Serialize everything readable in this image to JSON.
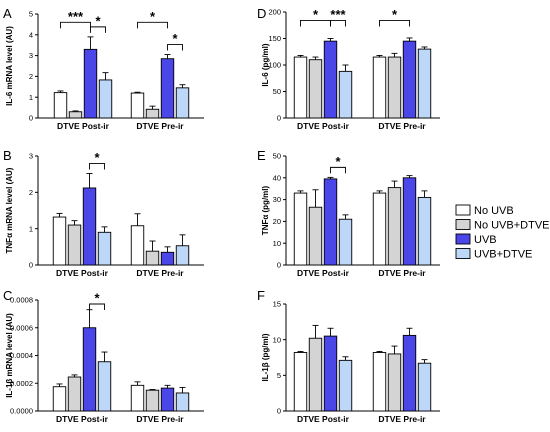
{
  "chart_data": [
    {
      "type": "bar",
      "panel": "A",
      "ylabel": "IL-6 mRNA level (AU)",
      "ylim": [
        0,
        5
      ],
      "yticks": [
        0,
        1,
        2,
        3,
        4,
        5
      ],
      "categories": [
        "DTVE Post-ir",
        "DTVE Pre-ir"
      ],
      "series": [
        {
          "name": "No UVB",
          "values": [
            1.22,
            1.2
          ],
          "errors": [
            0.08,
            0.04
          ]
        },
        {
          "name": "No UVB+DTVE",
          "values": [
            0.3,
            0.42
          ],
          "errors": [
            0.04,
            0.15
          ]
        },
        {
          "name": "UVB",
          "values": [
            3.3,
            2.85
          ],
          "errors": [
            0.6,
            0.2
          ]
        },
        {
          "name": "UVB+DTVE",
          "values": [
            1.83,
            1.45
          ],
          "errors": [
            0.35,
            0.15
          ]
        }
      ],
      "significance": [
        {
          "label": "***",
          "from": [
            0,
            0
          ],
          "to": [
            0,
            2
          ]
        },
        {
          "label": "*",
          "from": [
            0,
            2
          ],
          "to": [
            0,
            3
          ]
        },
        {
          "label": "*",
          "from": [
            1,
            0
          ],
          "to": [
            1,
            2
          ]
        },
        {
          "label": "*",
          "from": [
            1,
            2
          ],
          "to": [
            1,
            3
          ]
        }
      ]
    },
    {
      "type": "bar",
      "panel": "B",
      "ylabel": "TNFα mRNA level (AU)",
      "ylim": [
        0,
        3
      ],
      "yticks": [
        0,
        1,
        2,
        3
      ],
      "categories": [
        "DTVE Post-ir",
        "DTVE Pre-ir"
      ],
      "series": [
        {
          "name": "No UVB",
          "values": [
            1.32,
            1.08
          ],
          "errors": [
            0.1,
            0.33
          ]
        },
        {
          "name": "No UVB+DTVE",
          "values": [
            1.1,
            0.38
          ],
          "errors": [
            0.12,
            0.28
          ]
        },
        {
          "name": "UVB",
          "values": [
            2.12,
            0.35
          ],
          "errors": [
            0.4,
            0.15
          ]
        },
        {
          "name": "UVB+DTVE",
          "values": [
            0.9,
            0.53
          ],
          "errors": [
            0.15,
            0.3
          ]
        }
      ],
      "significance": [
        {
          "label": "*",
          "from": [
            0,
            2
          ],
          "to": [
            0,
            3
          ]
        }
      ]
    },
    {
      "type": "bar",
      "panel": "C",
      "ylabel": "IL-1β mRNA level (AU)",
      "ylim": [
        0,
        0.0008
      ],
      "yticks": [
        "0.0000",
        "0.0002",
        "0.0004",
        "0.0006",
        "0.0008"
      ],
      "categories": [
        "DTVE Post-ir",
        "DTVE Pre-ir"
      ],
      "series": [
        {
          "name": "No UVB",
          "values": [
            0.000175,
            0.000185
          ],
          "errors": [
            2e-05,
            2.5e-05
          ]
        },
        {
          "name": "No UVB+DTVE",
          "values": [
            0.000245,
            0.00015
          ],
          "errors": [
            1.5e-05,
            5e-06
          ]
        },
        {
          "name": "UVB",
          "values": [
            0.0006,
            0.000165
          ],
          "errors": [
            0.00013,
            2e-05
          ]
        },
        {
          "name": "UVB+DTVE",
          "values": [
            0.000355,
            0.00013
          ],
          "errors": [
            7e-05,
            4e-05
          ]
        }
      ],
      "significance": [
        {
          "label": "*",
          "from": [
            0,
            2
          ],
          "to": [
            0,
            3
          ]
        }
      ]
    },
    {
      "type": "bar",
      "panel": "D",
      "ylabel": "IL-6 (pg/ml)",
      "ylim": [
        0,
        200
      ],
      "yticks": [
        0,
        50,
        100,
        150,
        200
      ],
      "categories": [
        "DTVE Post-ir",
        "DTVE Pre-ir"
      ],
      "series": [
        {
          "name": "No UVB",
          "values": [
            115,
            115
          ],
          "errors": [
            3,
            3
          ]
        },
        {
          "name": "No UVB+DTVE",
          "values": [
            110,
            115
          ],
          "errors": [
            5,
            7
          ]
        },
        {
          "name": "UVB",
          "values": [
            145,
            145
          ],
          "errors": [
            5,
            6
          ]
        },
        {
          "name": "UVB+DTVE",
          "values": [
            88,
            130
          ],
          "errors": [
            12,
            4
          ]
        }
      ],
      "significance": [
        {
          "label": "*",
          "from": [
            0,
            0
          ],
          "to": [
            0,
            2
          ]
        },
        {
          "label": "***",
          "from": [
            0,
            2
          ],
          "to": [
            0,
            3
          ]
        },
        {
          "label": "*",
          "from": [
            1,
            0
          ],
          "to": [
            1,
            2
          ]
        }
      ]
    },
    {
      "type": "bar",
      "panel": "E",
      "ylabel": "TNFα (pg/ml)",
      "ylim": [
        0,
        50
      ],
      "yticks": [
        0,
        10,
        20,
        30,
        40,
        50
      ],
      "categories": [
        "DTVE Post-ir",
        "DTVE Pre-ir"
      ],
      "series": [
        {
          "name": "No UVB",
          "values": [
            33,
            33
          ],
          "errors": [
            1,
            1
          ]
        },
        {
          "name": "No UVB+DTVE",
          "values": [
            26.5,
            35.5
          ],
          "errors": [
            8,
            3
          ]
        },
        {
          "name": "UVB",
          "values": [
            39.5,
            40
          ],
          "errors": [
            0.7,
            1
          ]
        },
        {
          "name": "UVB+DTVE",
          "values": [
            21,
            31
          ],
          "errors": [
            2,
            3
          ]
        }
      ],
      "significance": [
        {
          "label": "*",
          "from": [
            0,
            2
          ],
          "to": [
            0,
            3
          ]
        }
      ]
    },
    {
      "type": "bar",
      "panel": "F",
      "ylabel": "IL-1β (pg/ml)",
      "ylim": [
        0,
        15
      ],
      "yticks": [
        0,
        5,
        10,
        15
      ],
      "categories": [
        "DTVE Post-ir",
        "DTVE Pre-ir"
      ],
      "series": [
        {
          "name": "No UVB",
          "values": [
            8.2,
            8.2
          ],
          "errors": [
            0.15,
            0.15
          ]
        },
        {
          "name": "No UVB+DTVE",
          "values": [
            10.2,
            8.0
          ],
          "errors": [
            1.8,
            1.1
          ]
        },
        {
          "name": "UVB",
          "values": [
            10.5,
            10.6
          ],
          "errors": [
            1.1,
            1.0
          ]
        },
        {
          "name": "UVB+DTVE",
          "values": [
            7.1,
            6.7
          ],
          "errors": [
            0.5,
            0.5
          ]
        }
      ],
      "significance": []
    }
  ],
  "legend": {
    "entries": [
      "No UVB",
      "No UVB+DTVE",
      "UVB",
      "UVB+DTVE"
    ],
    "placement": "right-middle"
  },
  "colors": {
    "No UVB": "#ffffff",
    "No UVB+DTVE": "#d4d4d4",
    "UVB": "#4b46e8",
    "UVB+DTVE": "#bcd7f7"
  }
}
